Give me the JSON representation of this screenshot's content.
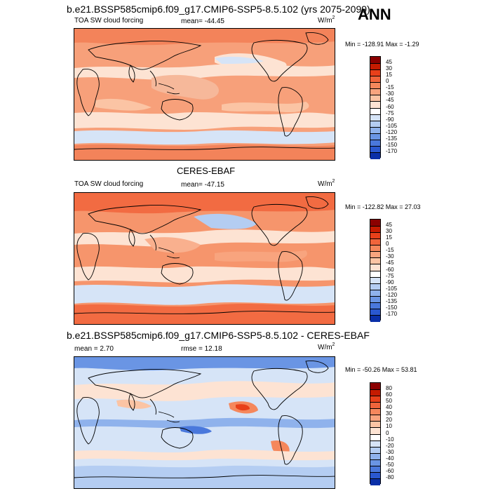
{
  "season": "ANN",
  "panels": [
    {
      "title": "b.e21.BSSP585cmip6.f09_g17.CMIP6-SSP5-8.5.102 (yrs 2075-2099)",
      "variable": "TOA SW cloud forcing",
      "stat1": "mean= -44.45",
      "stat2": "",
      "units": "W/m",
      "units_sup": "2",
      "minmax": "Min = -128.91 Max =  -1.29",
      "colorbar": {
        "labels": [
          "45",
          "30",
          "15",
          "0",
          "-15",
          "-30",
          "-45",
          "-60",
          "-75",
          "-90",
          "-105",
          "-120",
          "-135",
          "-150",
          "-170"
        ],
        "colors": [
          "#8b0000",
          "#c51b00",
          "#e8401a",
          "#f0643b",
          "#f5875c",
          "#f8a47e",
          "#fbc4a4",
          "#fde3d3",
          "#ffffff",
          "#d6e4f7",
          "#b4cdf2",
          "#8fb2ec",
          "#6a95e4",
          "#4a78dc",
          "#2a58d0",
          "#0a2fa8"
        ]
      }
    },
    {
      "title": "CERES-EBAF",
      "variable": "TOA SW cloud forcing",
      "stat1": "mean= -47.15",
      "stat2": "",
      "units": "W/m",
      "units_sup": "2",
      "minmax": "Min = -122.82 Max =  27.03",
      "colorbar": {
        "labels": [
          "45",
          "30",
          "15",
          "0",
          "-15",
          "-30",
          "-45",
          "-60",
          "-75",
          "-90",
          "-105",
          "-120",
          "-135",
          "-150",
          "-170"
        ],
        "colors": [
          "#8b0000",
          "#c51b00",
          "#e8401a",
          "#f0643b",
          "#f5875c",
          "#f8a47e",
          "#fbc4a4",
          "#fde3d3",
          "#ffffff",
          "#d6e4f7",
          "#b4cdf2",
          "#8fb2ec",
          "#6a95e4",
          "#4a78dc",
          "#2a58d0",
          "#0a2fa8"
        ]
      }
    },
    {
      "title": "b.e21.BSSP585cmip6.f09_g17.CMIP6-SSP5-8.5.102 - CERES-EBAF",
      "variable": "",
      "stat1": "mean =   2.70",
      "stat2": "rmse =  12.18",
      "units": "W/m",
      "units_sup": "2",
      "minmax": "Min = -50.26 Max =  53.81",
      "colorbar": {
        "labels": [
          "80",
          "60",
          "50",
          "40",
          "30",
          "20",
          "10",
          "0",
          "-10",
          "-20",
          "-30",
          "-40",
          "-50",
          "-60",
          "-80"
        ],
        "colors": [
          "#8b0000",
          "#c51b00",
          "#e8401a",
          "#f0643b",
          "#f5875c",
          "#f8a47e",
          "#fbc4a4",
          "#fde3d3",
          "#ffffff",
          "#d6e4f7",
          "#b4cdf2",
          "#8fb2ec",
          "#6a95e4",
          "#4a78dc",
          "#2a58d0",
          "#0a2fa8"
        ]
      }
    }
  ]
}
